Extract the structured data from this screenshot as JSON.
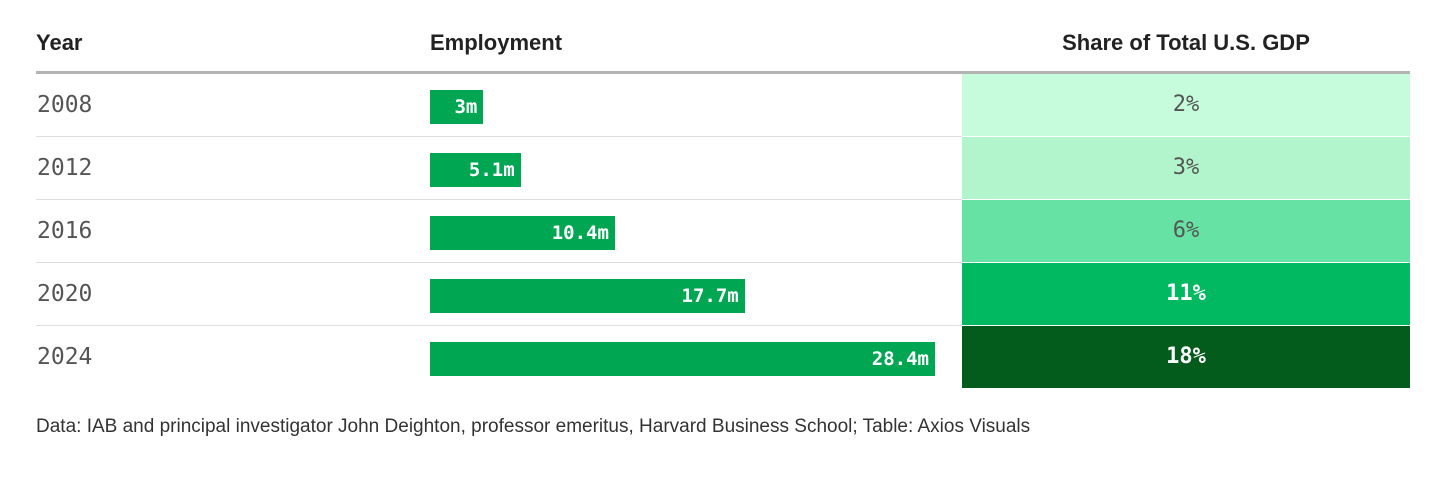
{
  "table": {
    "headers": {
      "year": "Year",
      "employment": "Employment",
      "gdp_share": "Share of Total U.S. GDP"
    },
    "source": "Data: IAB and principal investigator John Deighton, professor emeritus, Harvard Business School; Table: Axios Visuals"
  },
  "chart_data": {
    "type": "table",
    "columns": [
      "Year",
      "Employment",
      "Share of Total U.S. GDP"
    ],
    "rows": [
      {
        "year": "2008",
        "employment_label": "3m",
        "employment_value": 3.0,
        "gdp_label": "2%",
        "gdp_value": 2,
        "cell_color": "#c6fcdc",
        "text_color": "#555555"
      },
      {
        "year": "2012",
        "employment_label": "5.1m",
        "employment_value": 5.1,
        "gdp_label": "3%",
        "gdp_value": 3,
        "cell_color": "#b2f5cc",
        "text_color": "#555555"
      },
      {
        "year": "2016",
        "employment_label": "10.4m",
        "employment_value": 10.4,
        "gdp_label": "6%",
        "gdp_value": 6,
        "cell_color": "#66e3a4",
        "text_color": "#555555"
      },
      {
        "year": "2020",
        "employment_label": "17.7m",
        "employment_value": 17.7,
        "gdp_label": "11%",
        "gdp_value": 11,
        "cell_color": "#00b960",
        "text_color": "#ffffff"
      },
      {
        "year": "2024",
        "employment_label": "28.4m",
        "employment_value": 28.4,
        "gdp_label": "18%",
        "gdp_value": 18,
        "cell_color": "#035c1c",
        "text_color": "#ffffff"
      }
    ],
    "bar_color": "#00a651"
  }
}
